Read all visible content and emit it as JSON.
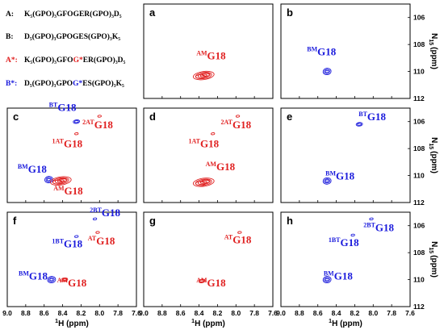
{
  "legend": [
    {
      "id": "A",
      "key": "A:",
      "seq": "K₅(GPO)₃GFOGER(GPO)₃D₅",
      "key_color": "#000000",
      "seq_parts": [
        {
          "t": "K₅(GPO)₃GFOGER(GPO)₃D₅",
          "c": "#000000"
        }
      ]
    },
    {
      "id": "B",
      "key": "B:",
      "seq": "D₅(GPO)₃GPOGES(GPO)₃K₅",
      "key_color": "#000000",
      "seq_parts": [
        {
          "t": "D₅(GPO)₃GPOGES(GPO)₃K₅",
          "c": "#000000"
        }
      ]
    },
    {
      "id": "A*",
      "key": "A*:",
      "seq": "K₅(GPO)₃GFOG*ER(GPO)₃D₅",
      "key_color": "#e02020",
      "seq_parts": [
        {
          "t": "K₅(GPO)₃GFO",
          "c": "#000000"
        },
        {
          "t": "G*",
          "c": "#e02020"
        },
        {
          "t": "ER(GPO)₃D₅",
          "c": "#000000"
        }
      ]
    },
    {
      "id": "B*",
      "key": "B*:",
      "seq": "D₅(GPO)₃GPOG*ES(GPO)₃K₅",
      "key_color": "#1a1adc",
      "seq_parts": [
        {
          "t": "D₅(GPO)₃GPO",
          "c": "#000000"
        },
        {
          "t": "G*",
          "c": "#1a1adc"
        },
        {
          "t": "ES(GPO)₃K₅",
          "c": "#000000"
        }
      ]
    }
  ],
  "colors": {
    "red": "#e02020",
    "blue": "#1a1adc",
    "axis": "#000000"
  },
  "axes": {
    "x_ticks": [
      "9.0",
      "8.8",
      "8.6",
      "8.4",
      "8.2",
      "8.0",
      "7.8",
      "7.6"
    ],
    "x_label_sup": "1",
    "x_label": "H (ppm)",
    "y_ticks": [
      "106",
      "108",
      "110",
      "112"
    ],
    "y_label_sub": "N",
    "y_label_subsub": "15",
    "y_label_full": "N15 (ppm)",
    "y_label_unit": "(ppm)"
  },
  "chart_data": {
    "type": "scatter",
    "xlabel": "1H (ppm)",
    "ylabel": "15N (ppm)",
    "xlim": [
      9.0,
      7.6
    ],
    "ylim": [
      105,
      112
    ],
    "panels": [
      {
        "label": "a",
        "peaks": [
          {
            "sup": "AM",
            "name": "G18",
            "x": 8.35,
            "y": 110.3,
            "color": "red",
            "size": "large",
            "lbl_dx": -0.08,
            "lbl_dy": -1.2
          }
        ]
      },
      {
        "label": "b",
        "peaks": [
          {
            "sup": "BM",
            "name": "G18",
            "x": 8.5,
            "y": 110.0,
            "color": "blue",
            "size": "medium",
            "lbl_dx": 0.06,
            "lbl_dy": -1.2
          }
        ]
      },
      {
        "label": "c",
        "peaks": [
          {
            "sup": "BT",
            "name": "G18",
            "x": 8.25,
            "y": 106.0,
            "color": "blue",
            "size": "small",
            "lbl_dx": 0.15,
            "lbl_dy": -0.8
          },
          {
            "sup": "2AT",
            "name": "G18",
            "x": 8.0,
            "y": 105.6,
            "color": "red",
            "size": "tiny",
            "lbl_dx": 0.02,
            "lbl_dy": 0.9
          },
          {
            "sup": "1AT",
            "name": "G18",
            "x": 8.25,
            "y": 106.9,
            "color": "red",
            "size": "tiny",
            "lbl_dx": 0.1,
            "lbl_dy": 1.0
          },
          {
            "sup": "BM",
            "name": "G18",
            "x": 8.55,
            "y": 110.3,
            "color": "blue",
            "size": "medium",
            "lbl_dx": 0.18,
            "lbl_dy": -0.5
          },
          {
            "sup": "AM",
            "name": "G18",
            "x": 8.42,
            "y": 110.4,
            "color": "red",
            "size": "large",
            "lbl_dx": -0.08,
            "lbl_dy": 1.0
          }
        ]
      },
      {
        "label": "d",
        "peaks": [
          {
            "sup": "2AT",
            "name": "G18",
            "x": 7.98,
            "y": 105.6,
            "color": "red",
            "size": "tiny",
            "lbl_dx": 0.02,
            "lbl_dy": 0.9
          },
          {
            "sup": "1AT",
            "name": "G18",
            "x": 8.25,
            "y": 106.9,
            "color": "red",
            "size": "tiny",
            "lbl_dx": 0.1,
            "lbl_dy": 1.0
          },
          {
            "sup": "AM",
            "name": "G18",
            "x": 8.35,
            "y": 110.5,
            "color": "red",
            "size": "large",
            "lbl_dx": -0.18,
            "lbl_dy": -0.9
          }
        ]
      },
      {
        "label": "e",
        "peaks": [
          {
            "sup": "BT",
            "name": "G18",
            "x": 8.15,
            "y": 106.2,
            "color": "blue",
            "size": "small",
            "lbl_dx": -0.14,
            "lbl_dy": -0.3
          },
          {
            "sup": "BM",
            "name": "G18",
            "x": 8.5,
            "y": 110.4,
            "color": "blue",
            "size": "medium",
            "lbl_dx": -0.14,
            "lbl_dy": -0.1
          }
        ]
      },
      {
        "label": "f",
        "peaks": [
          {
            "sup": "2BT",
            "name": "G18",
            "x": 8.05,
            "y": 105.5,
            "color": "blue",
            "size": "tiny",
            "lbl_dx": -0.11,
            "lbl_dy": -0.2
          },
          {
            "sup": "AT",
            "name": "G18",
            "x": 8.02,
            "y": 106.5,
            "color": "red",
            "size": "tiny",
            "lbl_dx": -0.04,
            "lbl_dy": 0.9
          },
          {
            "sup": "1BT",
            "name": "G18",
            "x": 8.25,
            "y": 106.8,
            "color": "blue",
            "size": "tiny",
            "lbl_dx": 0.1,
            "lbl_dy": 0.8
          },
          {
            "sup": "BM",
            "name": "G18",
            "x": 8.52,
            "y": 110.0,
            "color": "blue",
            "size": "medium",
            "lbl_dx": 0.2,
            "lbl_dy": 0.0
          },
          {
            "sup": "AM",
            "name": "G18",
            "x": 8.38,
            "y": 110.0,
            "color": "red",
            "size": "small",
            "lbl_dx": -0.08,
            "lbl_dy": 0.5
          }
        ]
      },
      {
        "label": "g",
        "peaks": [
          {
            "sup": "AT",
            "name": "G18",
            "x": 7.96,
            "y": 106.5,
            "color": "red",
            "size": "tiny",
            "lbl_dx": 0.02,
            "lbl_dy": 0.8
          },
          {
            "sup": "AM",
            "name": "G18",
            "x": 8.37,
            "y": 110.1,
            "color": "red",
            "size": "small",
            "lbl_dx": -0.1,
            "lbl_dy": 0.4
          }
        ]
      },
      {
        "label": "h",
        "peaks": [
          {
            "sup": "2BT",
            "name": "G18",
            "x": 8.02,
            "y": 105.5,
            "color": "blue",
            "size": "tiny",
            "lbl_dx": -0.08,
            "lbl_dy": 0.9
          },
          {
            "sup": "1BT",
            "name": "G18",
            "x": 8.22,
            "y": 106.7,
            "color": "blue",
            "size": "tiny",
            "lbl_dx": 0.1,
            "lbl_dy": 0.8
          },
          {
            "sup": "BM",
            "name": "G18",
            "x": 8.5,
            "y": 110.0,
            "color": "blue",
            "size": "medium",
            "lbl_dx": -0.12,
            "lbl_dy": 0.0
          }
        ]
      }
    ]
  }
}
